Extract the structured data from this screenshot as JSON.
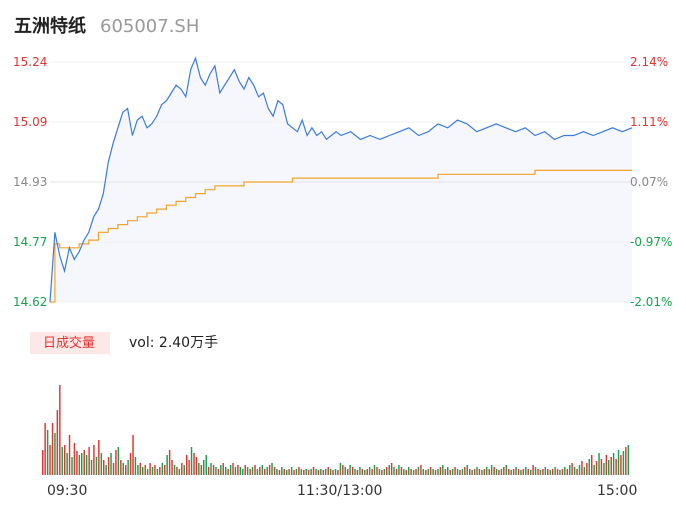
{
  "header": {
    "stock_name": "五洲特纸",
    "stock_code": "605007.SH"
  },
  "colors": {
    "up": "#e8322f",
    "down": "#14a34a",
    "neutral": "#888888",
    "price_line": "#3b7ae0",
    "avg_line": "#f0a42a",
    "area_fill": "#f5f7fd",
    "volume_badge_bg": "#fde8e8"
  },
  "price_axis": {
    "ticks": [
      "15.24",
      "15.09",
      "14.93",
      "14.77",
      "14.62"
    ],
    "pct_ticks": [
      "2.14%",
      "1.11%",
      "0.07%",
      "-0.97%",
      "-2.01%"
    ]
  },
  "time_axis": {
    "labels": [
      "09:30",
      "11:30/13:00",
      "15:00"
    ]
  },
  "volume": {
    "badge_label": "日成交量",
    "readout": "vol: 2.40万手"
  },
  "chart_data": {
    "type": "line",
    "title": "",
    "x_unit": "trading minute (0 = 09:30, 120 = 11:30/13:00, 240 = 15:00)",
    "ylim": [
      14.62,
      15.24
    ],
    "price_series": {
      "name": "price",
      "x": [
        0,
        2,
        4,
        6,
        8,
        10,
        12,
        14,
        16,
        18,
        20,
        22,
        24,
        26,
        28,
        30,
        32,
        34,
        36,
        38,
        40,
        42,
        44,
        46,
        48,
        50,
        52,
        54,
        56,
        58,
        60,
        62,
        64,
        66,
        68,
        70,
        72,
        74,
        76,
        78,
        80,
        82,
        84,
        86,
        88,
        90,
        92,
        94,
        96,
        98,
        100,
        102,
        104,
        106,
        108,
        110,
        112,
        114,
        116,
        118,
        120,
        124,
        128,
        132,
        136,
        140,
        144,
        148,
        152,
        156,
        160,
        164,
        168,
        172,
        176,
        180,
        184,
        188,
        192,
        196,
        200,
        204,
        208,
        212,
        216,
        220,
        224,
        228,
        232,
        236,
        240
      ],
      "values": [
        14.62,
        14.8,
        14.74,
        14.7,
        14.76,
        14.73,
        14.75,
        14.78,
        14.8,
        14.84,
        14.86,
        14.9,
        14.98,
        15.03,
        15.07,
        15.11,
        15.12,
        15.05,
        15.09,
        15.1,
        15.07,
        15.08,
        15.1,
        15.13,
        15.14,
        15.16,
        15.18,
        15.17,
        15.15,
        15.22,
        15.25,
        15.2,
        15.18,
        15.21,
        15.23,
        15.16,
        15.18,
        15.2,
        15.22,
        15.19,
        15.17,
        15.2,
        15.18,
        15.15,
        15.16,
        15.12,
        15.1,
        15.14,
        15.13,
        15.08,
        15.07,
        15.06,
        15.09,
        15.05,
        15.07,
        15.05,
        15.06,
        15.04,
        15.05,
        15.06,
        15.05,
        15.06,
        15.04,
        15.05,
        15.04,
        15.05,
        15.06,
        15.07,
        15.05,
        15.06,
        15.08,
        15.07,
        15.09,
        15.08,
        15.06,
        15.07,
        15.08,
        15.07,
        15.06,
        15.07,
        15.05,
        15.06,
        15.04,
        15.05,
        15.05,
        15.06,
        15.05,
        15.06,
        15.07,
        15.06,
        15.07
      ]
    },
    "avg_series": {
      "name": "average",
      "x": [
        0,
        2,
        4,
        8,
        12,
        16,
        20,
        24,
        28,
        32,
        36,
        40,
        44,
        48,
        52,
        56,
        60,
        64,
        68,
        72,
        76,
        80,
        90,
        100,
        110,
        120,
        140,
        160,
        180,
        200,
        220,
        240
      ],
      "values": [
        14.62,
        14.77,
        14.76,
        14.76,
        14.77,
        14.78,
        14.8,
        14.81,
        14.82,
        14.83,
        14.84,
        14.85,
        14.86,
        14.87,
        14.88,
        14.89,
        14.9,
        14.91,
        14.92,
        14.92,
        14.92,
        14.93,
        14.93,
        14.94,
        14.94,
        14.94,
        14.94,
        14.95,
        14.95,
        14.96,
        14.96,
        14.96
      ]
    },
    "volume_series": {
      "name": "volume",
      "bars_per_session": 120,
      "values": [
        0.25,
        0.52,
        0.45,
        0.3,
        0.52,
        0.42,
        0.65,
        0.9,
        0.28,
        0.3,
        0.22,
        0.4,
        0.18,
        0.32,
        0.24,
        0.2,
        0.22,
        0.25,
        0.2,
        0.28,
        0.15,
        0.3,
        0.18,
        0.35,
        0.22,
        0.15,
        0.1,
        0.18,
        0.22,
        0.12,
        0.25,
        0.28,
        0.15,
        0.12,
        0.1,
        0.15,
        0.22,
        0.4,
        0.18,
        0.1,
        0.12,
        0.08,
        0.1,
        0.06,
        0.12,
        0.08,
        0.1,
        0.06,
        0.08,
        0.12,
        0.1,
        0.2,
        0.25,
        0.15,
        0.1,
        0.08,
        0.06,
        0.12,
        0.1,
        0.2,
        0.15,
        0.28,
        0.22,
        0.18,
        0.12,
        0.1,
        0.15,
        0.2,
        0.08,
        0.12,
        0.1,
        0.08,
        0.06,
        0.1,
        0.12,
        0.08,
        0.06,
        0.1,
        0.12,
        0.08,
        0.1,
        0.08,
        0.06,
        0.1,
        0.08,
        0.06,
        0.08,
        0.1,
        0.06,
        0.08,
        0.1,
        0.06,
        0.08,
        0.1,
        0.12,
        0.08,
        0.06,
        0.05,
        0.08,
        0.06,
        0.05,
        0.06,
        0.08,
        0.05,
        0.06,
        0.08,
        0.06,
        0.05,
        0.06,
        0.05,
        0.06,
        0.08,
        0.06,
        0.05,
        0.06,
        0.05,
        0.06,
        0.08,
        0.06,
        0.05,
        0.06,
        0.05,
        0.12,
        0.1,
        0.08,
        0.06,
        0.1,
        0.08,
        0.06,
        0.05,
        0.08,
        0.06,
        0.05,
        0.06,
        0.08,
        0.06,
        0.1,
        0.08,
        0.06,
        0.05,
        0.06,
        0.08,
        0.1,
        0.12,
        0.08,
        0.06,
        0.1,
        0.08,
        0.06,
        0.05,
        0.08,
        0.06,
        0.05,
        0.06,
        0.08,
        0.1,
        0.06,
        0.05,
        0.06,
        0.08,
        0.06,
        0.05,
        0.06,
        0.08,
        0.1,
        0.06,
        0.08,
        0.05,
        0.06,
        0.08,
        0.06,
        0.05,
        0.06,
        0.08,
        0.1,
        0.06,
        0.05,
        0.06,
        0.08,
        0.06,
        0.05,
        0.06,
        0.08,
        0.06,
        0.1,
        0.08,
        0.06,
        0.05,
        0.06,
        0.08,
        0.1,
        0.06,
        0.05,
        0.06,
        0.08,
        0.06,
        0.05,
        0.06,
        0.08,
        0.06,
        0.05,
        0.1,
        0.08,
        0.06,
        0.05,
        0.06,
        0.08,
        0.06,
        0.05,
        0.06,
        0.08,
        0.06,
        0.05,
        0.06,
        0.08,
        0.06,
        0.1,
        0.12,
        0.08,
        0.06,
        0.1,
        0.14,
        0.08,
        0.12,
        0.16,
        0.2,
        0.1,
        0.14,
        0.22,
        0.16,
        0.12,
        0.2,
        0.15,
        0.18,
        0.22,
        0.16,
        0.25,
        0.2,
        0.24,
        0.28,
        0.3
      ],
      "direction": [
        "u",
        "u",
        "d",
        "u",
        "u",
        "d",
        "u",
        "u",
        "d",
        "u",
        "d",
        "u",
        "d",
        "u",
        "u",
        "d",
        "d",
        "u",
        "d",
        "u",
        "d",
        "u",
        "d",
        "u",
        "d",
        "u",
        "d",
        "u",
        "d",
        "u",
        "u",
        "d",
        "u",
        "d",
        "u",
        "d",
        "u",
        "u",
        "d",
        "d",
        "u",
        "d",
        "u",
        "d",
        "u",
        "d",
        "u",
        "d",
        "u",
        "d",
        "u",
        "d",
        "u",
        "u",
        "d",
        "u",
        "d",
        "u",
        "d",
        "u",
        "u",
        "d",
        "u",
        "u",
        "d",
        "u",
        "d",
        "d",
        "u",
        "d",
        "u",
        "d",
        "u",
        "d",
        "u",
        "d",
        "u",
        "d",
        "u",
        "d",
        "u",
        "d",
        "d",
        "u",
        "d",
        "u",
        "d",
        "u",
        "d",
        "u",
        "d",
        "u",
        "d",
        "u",
        "d",
        "u",
        "d",
        "u",
        "d",
        "u",
        "d",
        "u",
        "d",
        "u",
        "d",
        "u",
        "d",
        "u",
        "d",
        "u",
        "d",
        "u",
        "d",
        "u",
        "d",
        "u",
        "d",
        "u",
        "d",
        "u",
        "d",
        "u",
        "d",
        "u",
        "d",
        "u",
        "d",
        "u",
        "d",
        "u",
        "d",
        "u",
        "d",
        "u",
        "d",
        "u",
        "d",
        "u",
        "d",
        "u",
        "d",
        "u",
        "d",
        "u",
        "d",
        "u",
        "d",
        "u",
        "d",
        "u",
        "d",
        "u",
        "d",
        "u",
        "d",
        "u",
        "d",
        "u",
        "d",
        "u",
        "d",
        "u",
        "d",
        "u",
        "d",
        "u",
        "d",
        "u",
        "d",
        "u",
        "d",
        "u",
        "d",
        "u",
        "d",
        "u",
        "d",
        "u",
        "d",
        "u",
        "d",
        "u",
        "d",
        "u",
        "d",
        "u",
        "d",
        "u",
        "d",
        "u",
        "d",
        "u",
        "d",
        "u",
        "d",
        "u",
        "d",
        "u",
        "d",
        "u",
        "d",
        "u",
        "d",
        "u",
        "d",
        "u",
        "d",
        "u",
        "d",
        "u",
        "d",
        "u",
        "d",
        "u",
        "d",
        "u",
        "d",
        "u",
        "d",
        "u",
        "d",
        "u",
        "d",
        "u",
        "d",
        "u",
        "d",
        "u",
        "d",
        "u",
        "d",
        "u",
        "d",
        "u",
        "d",
        "u",
        "d",
        "u",
        "d",
        "u",
        "d",
        "u",
        "d",
        "u",
        "d",
        "u",
        "d",
        "u",
        "u"
      ]
    }
  }
}
